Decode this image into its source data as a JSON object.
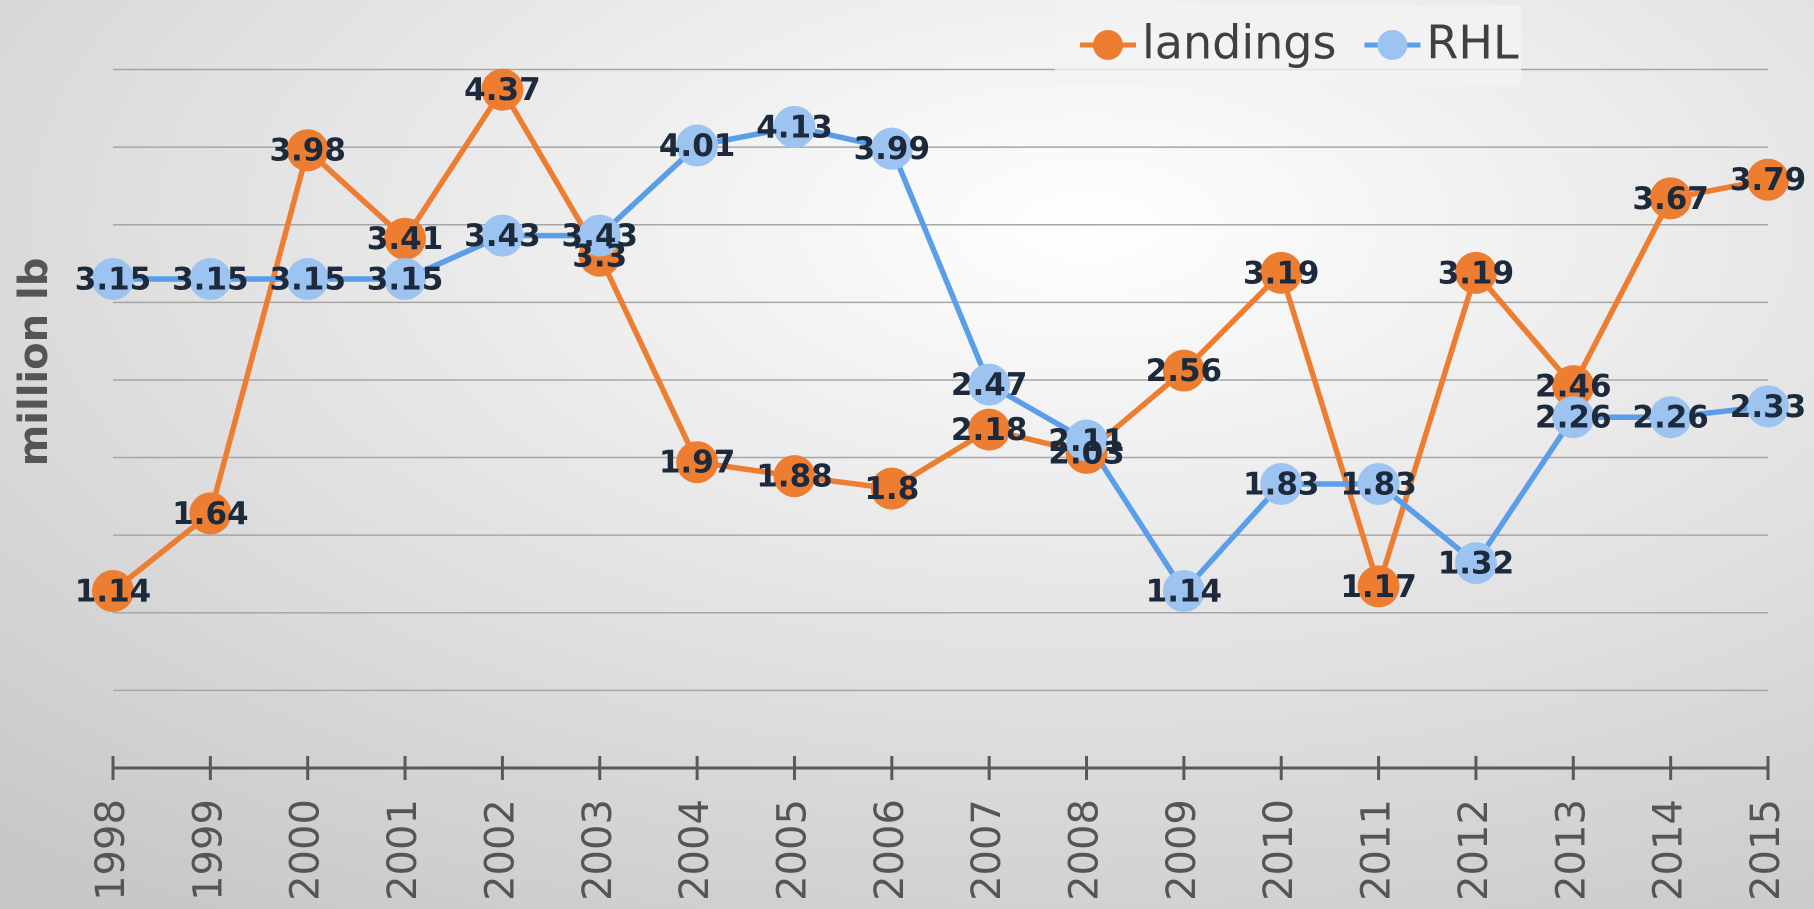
{
  "chart_data": {
    "type": "line",
    "y_label": "million lb",
    "categories": [
      "1998",
      "1999",
      "2000",
      "2001",
      "2002",
      "2003",
      "2004",
      "2005",
      "2006",
      "2007",
      "2008",
      "2009",
      "2010",
      "2011",
      "2012",
      "2013",
      "2014",
      "2015"
    ],
    "series": [
      {
        "name": "landings",
        "color": "#ed7d31",
        "marker_color": "#ed7d31",
        "values": [
          1.14,
          1.64,
          3.98,
          3.41,
          4.37,
          3.3,
          1.97,
          1.88,
          1.8,
          2.18,
          2.03,
          2.56,
          3.19,
          1.17,
          3.19,
          2.46,
          3.67,
          3.79
        ]
      },
      {
        "name": "RHL",
        "color": "#5b9ee8",
        "marker_color": "#9dc3f0",
        "values": [
          3.15,
          3.15,
          3.15,
          3.15,
          3.43,
          3.43,
          4.01,
          4.13,
          3.99,
          2.47,
          2.11,
          1.14,
          1.83,
          1.83,
          1.32,
          2.26,
          2.26,
          2.33
        ]
      }
    ],
    "ylim": [
      0,
      4.5
    ],
    "yticks": [
      0.5,
      1,
      1.5,
      2,
      2.5,
      3,
      3.5,
      4,
      4.5
    ],
    "grid": true,
    "legend": "top"
  }
}
